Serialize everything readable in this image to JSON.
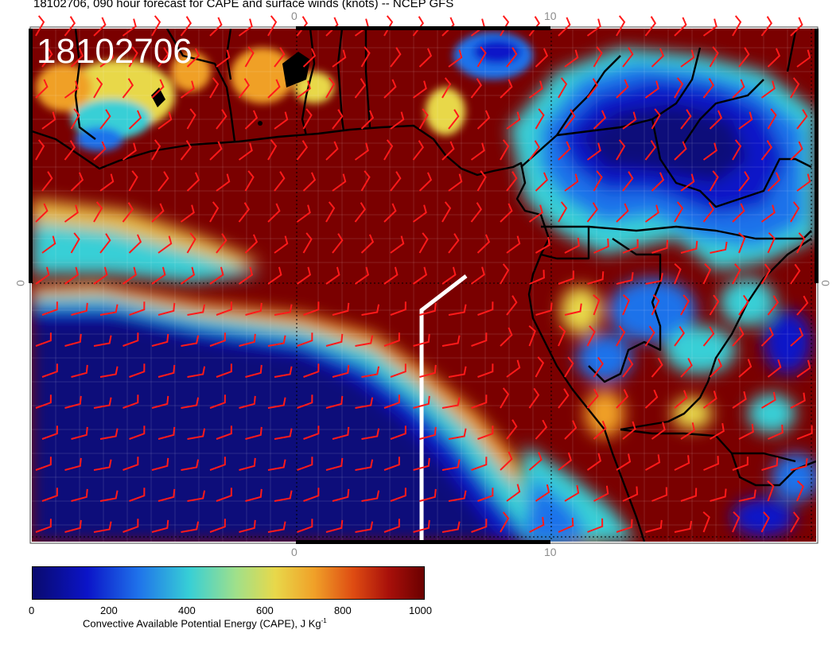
{
  "title": "18102706, 090 hour forecast for CAPE and surface winds (knots) -- NCEP GFS",
  "stamp": "18102706",
  "axis_ticks": {
    "top": [
      "0",
      "10"
    ],
    "bottom": [
      "0",
      "10"
    ],
    "left": [
      "0"
    ],
    "right": [
      "0"
    ]
  },
  "colorbar": {
    "ticks": [
      "0",
      "200",
      "400",
      "600",
      "800",
      "1000"
    ],
    "title": "Convective Available Potential Energy (CAPE), J Kg",
    "title_sup": "-1",
    "colors": [
      "#0a0a6e",
      "#0b14c8",
      "#1f72ea",
      "#37cfd6",
      "#a0e08a",
      "#e8d84a",
      "#f0a028",
      "#de4b12",
      "#a8100a",
      "#6b0000"
    ]
  },
  "colors": {
    "high_cape": "#7a0000",
    "low_cape": "#0b1a8c",
    "wind_barb": "#ff1a1a",
    "coastline": "#000000",
    "cross_section": "#ffffff"
  }
}
